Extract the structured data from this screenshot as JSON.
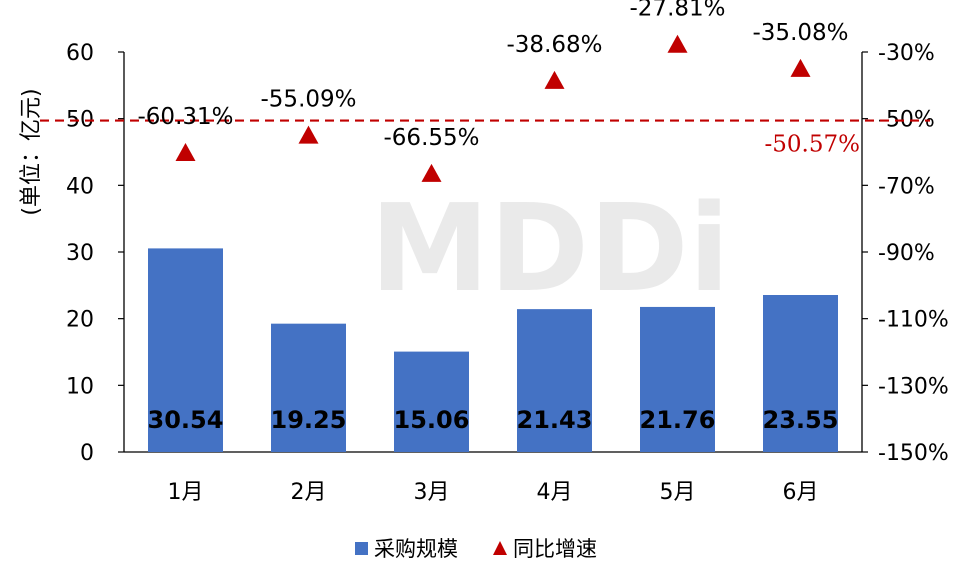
{
  "watermark": "MDDi",
  "chart_data": {
    "type": "bar",
    "categories": [
      "1月",
      "2月",
      "3月",
      "4月",
      "5月",
      "6月"
    ],
    "series": [
      {
        "name": "采购规模",
        "type": "bar",
        "axis": "left",
        "color": "#4472C4",
        "values": [
          30.54,
          19.25,
          15.06,
          21.43,
          21.76,
          23.55
        ],
        "labels": [
          "30.54",
          "19.25",
          "15.06",
          "21.43",
          "21.76",
          "23.55"
        ]
      },
      {
        "name": "同比增速",
        "type": "scatter",
        "marker": "triangle",
        "axis": "right",
        "color": "#C00000",
        "values": [
          -60.31,
          -55.09,
          -66.55,
          -38.68,
          -27.81,
          -35.08
        ],
        "labels": [
          "-60.31%",
          "-55.09%",
          "-66.55%",
          "-38.68%",
          "-27.81%",
          "-35.08%"
        ]
      }
    ],
    "reference_line": {
      "axis": "right",
      "value": -50.57,
      "label": "-50.57%",
      "style": "dashed",
      "color": "#C00000"
    },
    "ylabel": "(单位：亿元)",
    "ylim": [
      0,
      60
    ],
    "yticks": [
      "0",
      "10",
      "20",
      "30",
      "40",
      "50",
      "60"
    ],
    "y2lim": [
      -150,
      -30
    ],
    "y2ticks": [
      "-30%",
      "-50%",
      "-70%",
      "-90%",
      "-110%",
      "-130%",
      "-150%"
    ],
    "grid": false,
    "legend_position": "bottom"
  }
}
